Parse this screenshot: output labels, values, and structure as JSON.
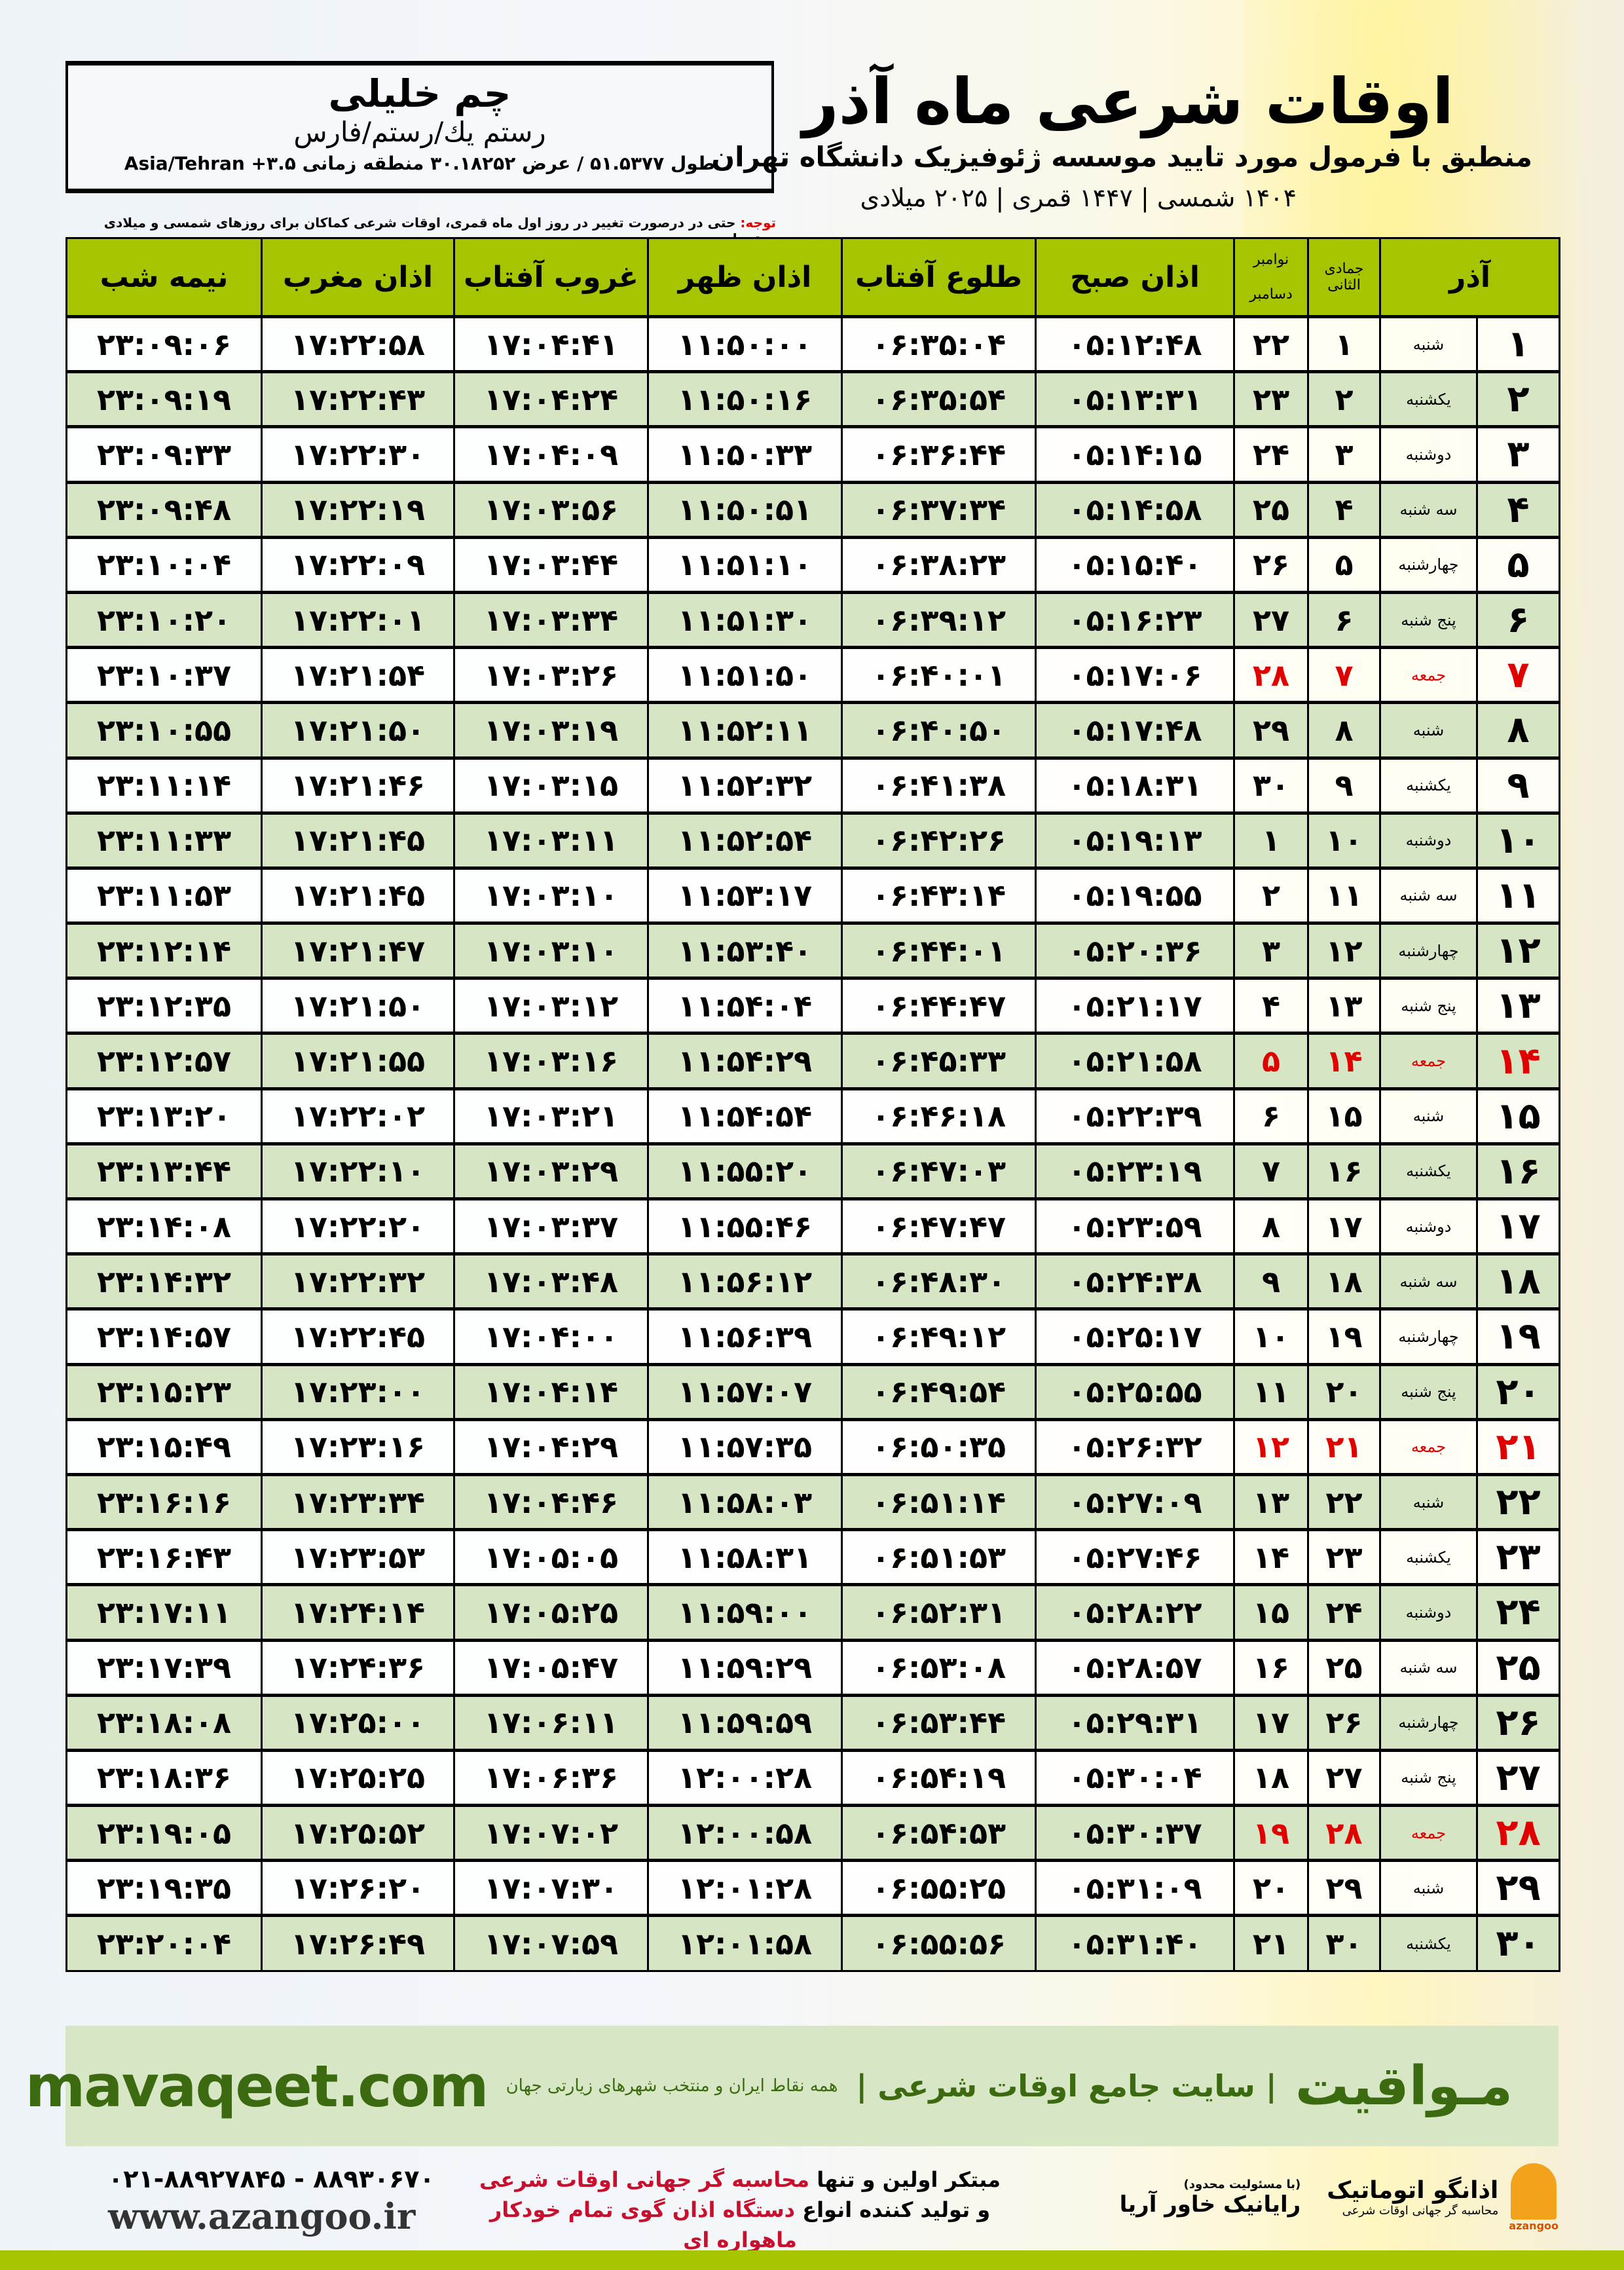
{
  "location": {
    "city": "چم خلیلی",
    "region": "رستم یك/رستم/فارس",
    "coords": "طول ۵۱.۵۳۷۷ / عرض ۳۰.۱۸۲۵۲ منطقه زمانی ۳.۵+ Asia/Tehran"
  },
  "header": {
    "title": "اوقات شرعی ماه آذر",
    "subtitle": "منطبق با فرمول مورد تایید موسسه ژئوفیزیک دانشگاه تهران",
    "dateline": "۱۴۰۴ شمسی | ۱۴۴۷ قمری | ۲۰۲۵ میلادی"
  },
  "note": {
    "label": "توجه:",
    "text": " حتی در درصورت تغییر در روز اول ماه قمری، اوقات شرعی کماکان برای روزهای شمسی و میلادی معتبر است."
  },
  "columns": {
    "azar": "آذر",
    "jumada": "جمادی الثانی",
    "november": "نوامبر",
    "december": "دسامبر",
    "sobh": "اذان صبح",
    "tolu": "طلوع آفتاب",
    "zohr": "اذان ظهر",
    "ghorub": "غروب آفتاب",
    "maghreb": "اذان مغرب",
    "nimeh": "نیمه شب"
  },
  "colors": {
    "header_green": "#a6c400",
    "row_green": "#d6e6c4",
    "friday_red": "#e00000",
    "brand_green": "#3b6a10"
  },
  "rows": [
    [
      "۱",
      "شنبه",
      "۱",
      "۲۲",
      "۰۵:۱۲:۴۸",
      "۰۶:۳۵:۰۴",
      "۱۱:۵۰:۰۰",
      "۱۷:۰۴:۴۱",
      "۱۷:۲۲:۵۸",
      "۲۳:۰۹:۰۶"
    ],
    [
      "۲",
      "یکشنبه",
      "۲",
      "۲۳",
      "۰۵:۱۳:۳۱",
      "۰۶:۳۵:۵۴",
      "۱۱:۵۰:۱۶",
      "۱۷:۰۴:۲۴",
      "۱۷:۲۲:۴۳",
      "۲۳:۰۹:۱۹"
    ],
    [
      "۳",
      "دوشنبه",
      "۳",
      "۲۴",
      "۰۵:۱۴:۱۵",
      "۰۶:۳۶:۴۴",
      "۱۱:۵۰:۳۳",
      "۱۷:۰۴:۰۹",
      "۱۷:۲۲:۳۰",
      "۲۳:۰۹:۳۳"
    ],
    [
      "۴",
      "سه شنبه",
      "۴",
      "۲۵",
      "۰۵:۱۴:۵۸",
      "۰۶:۳۷:۳۴",
      "۱۱:۵۰:۵۱",
      "۱۷:۰۳:۵۶",
      "۱۷:۲۲:۱۹",
      "۲۳:۰۹:۴۸"
    ],
    [
      "۵",
      "چهارشنبه",
      "۵",
      "۲۶",
      "۰۵:۱۵:۴۰",
      "۰۶:۳۸:۲۳",
      "۱۱:۵۱:۱۰",
      "۱۷:۰۳:۴۴",
      "۱۷:۲۲:۰۹",
      "۲۳:۱۰:۰۴"
    ],
    [
      "۶",
      "پنج شنبه",
      "۶",
      "۲۷",
      "۰۵:۱۶:۲۳",
      "۰۶:۳۹:۱۲",
      "۱۱:۵۱:۳۰",
      "۱۷:۰۳:۳۴",
      "۱۷:۲۲:۰۱",
      "۲۳:۱۰:۲۰"
    ],
    [
      "۷",
      "جمعه",
      "۷",
      "۲۸",
      "۰۵:۱۷:۰۶",
      "۰۶:۴۰:۰۱",
      "۱۱:۵۱:۵۰",
      "۱۷:۰۳:۲۶",
      "۱۷:۲۱:۵۴",
      "۲۳:۱۰:۳۷"
    ],
    [
      "۸",
      "شنبه",
      "۸",
      "۲۹",
      "۰۵:۱۷:۴۸",
      "۰۶:۴۰:۵۰",
      "۱۱:۵۲:۱۱",
      "۱۷:۰۳:۱۹",
      "۱۷:۲۱:۵۰",
      "۲۳:۱۰:۵۵"
    ],
    [
      "۹",
      "یکشنبه",
      "۹",
      "۳۰",
      "۰۵:۱۸:۳۱",
      "۰۶:۴۱:۳۸",
      "۱۱:۵۲:۳۲",
      "۱۷:۰۳:۱۵",
      "۱۷:۲۱:۴۶",
      "۲۳:۱۱:۱۴"
    ],
    [
      "۱۰",
      "دوشنبه",
      "۱۰",
      "۱",
      "۰۵:۱۹:۱۳",
      "۰۶:۴۲:۲۶",
      "۱۱:۵۲:۵۴",
      "۱۷:۰۳:۱۱",
      "۱۷:۲۱:۴۵",
      "۲۳:۱۱:۳۳"
    ],
    [
      "۱۱",
      "سه شنبه",
      "۱۱",
      "۲",
      "۰۵:۱۹:۵۵",
      "۰۶:۴۳:۱۴",
      "۱۱:۵۳:۱۷",
      "۱۷:۰۳:۱۰",
      "۱۷:۲۱:۴۵",
      "۲۳:۱۱:۵۳"
    ],
    [
      "۱۲",
      "چهارشنبه",
      "۱۲",
      "۳",
      "۰۵:۲۰:۳۶",
      "۰۶:۴۴:۰۱",
      "۱۱:۵۳:۴۰",
      "۱۷:۰۳:۱۰",
      "۱۷:۲۱:۴۷",
      "۲۳:۱۲:۱۴"
    ],
    [
      "۱۳",
      "پنج شنبه",
      "۱۳",
      "۴",
      "۰۵:۲۱:۱۷",
      "۰۶:۴۴:۴۷",
      "۱۱:۵۴:۰۴",
      "۱۷:۰۳:۱۲",
      "۱۷:۲۱:۵۰",
      "۲۳:۱۲:۳۵"
    ],
    [
      "۱۴",
      "جمعه",
      "۱۴",
      "۵",
      "۰۵:۲۱:۵۸",
      "۰۶:۴۵:۳۳",
      "۱۱:۵۴:۲۹",
      "۱۷:۰۳:۱۶",
      "۱۷:۲۱:۵۵",
      "۲۳:۱۲:۵۷"
    ],
    [
      "۱۵",
      "شنبه",
      "۱۵",
      "۶",
      "۰۵:۲۲:۳۹",
      "۰۶:۴۶:۱۸",
      "۱۱:۵۴:۵۴",
      "۱۷:۰۳:۲۱",
      "۱۷:۲۲:۰۲",
      "۲۳:۱۳:۲۰"
    ],
    [
      "۱۶",
      "یکشنبه",
      "۱۶",
      "۷",
      "۰۵:۲۳:۱۹",
      "۰۶:۴۷:۰۳",
      "۱۱:۵۵:۲۰",
      "۱۷:۰۳:۲۹",
      "۱۷:۲۲:۱۰",
      "۲۳:۱۳:۴۴"
    ],
    [
      "۱۷",
      "دوشنبه",
      "۱۷",
      "۸",
      "۰۵:۲۳:۵۹",
      "۰۶:۴۷:۴۷",
      "۱۱:۵۵:۴۶",
      "۱۷:۰۳:۳۷",
      "۱۷:۲۲:۲۰",
      "۲۳:۱۴:۰۸"
    ],
    [
      "۱۸",
      "سه شنبه",
      "۱۸",
      "۹",
      "۰۵:۲۴:۳۸",
      "۰۶:۴۸:۳۰",
      "۱۱:۵۶:۱۲",
      "۱۷:۰۳:۴۸",
      "۱۷:۲۲:۳۲",
      "۲۳:۱۴:۳۲"
    ],
    [
      "۱۹",
      "چهارشنبه",
      "۱۹",
      "۱۰",
      "۰۵:۲۵:۱۷",
      "۰۶:۴۹:۱۲",
      "۱۱:۵۶:۳۹",
      "۱۷:۰۴:۰۰",
      "۱۷:۲۲:۴۵",
      "۲۳:۱۴:۵۷"
    ],
    [
      "۲۰",
      "پنج شنبه",
      "۲۰",
      "۱۱",
      "۰۵:۲۵:۵۵",
      "۰۶:۴۹:۵۴",
      "۱۱:۵۷:۰۷",
      "۱۷:۰۴:۱۴",
      "۱۷:۲۳:۰۰",
      "۲۳:۱۵:۲۳"
    ],
    [
      "۲۱",
      "جمعه",
      "۲۱",
      "۱۲",
      "۰۵:۲۶:۳۲",
      "۰۶:۵۰:۳۵",
      "۱۱:۵۷:۳۵",
      "۱۷:۰۴:۲۹",
      "۱۷:۲۳:۱۶",
      "۲۳:۱۵:۴۹"
    ],
    [
      "۲۲",
      "شنبه",
      "۲۲",
      "۱۳",
      "۰۵:۲۷:۰۹",
      "۰۶:۵۱:۱۴",
      "۱۱:۵۸:۰۳",
      "۱۷:۰۴:۴۶",
      "۱۷:۲۳:۳۴",
      "۲۳:۱۶:۱۶"
    ],
    [
      "۲۳",
      "یکشنبه",
      "۲۳",
      "۱۴",
      "۰۵:۲۷:۴۶",
      "۰۶:۵۱:۵۳",
      "۱۱:۵۸:۳۱",
      "۱۷:۰۵:۰۵",
      "۱۷:۲۳:۵۳",
      "۲۳:۱۶:۴۳"
    ],
    [
      "۲۴",
      "دوشنبه",
      "۲۴",
      "۱۵",
      "۰۵:۲۸:۲۲",
      "۰۶:۵۲:۳۱",
      "۱۱:۵۹:۰۰",
      "۱۷:۰۵:۲۵",
      "۱۷:۲۴:۱۴",
      "۲۳:۱۷:۱۱"
    ],
    [
      "۲۵",
      "سه شنبه",
      "۲۵",
      "۱۶",
      "۰۵:۲۸:۵۷",
      "۰۶:۵۳:۰۸",
      "۱۱:۵۹:۲۹",
      "۱۷:۰۵:۴۷",
      "۱۷:۲۴:۳۶",
      "۲۳:۱۷:۳۹"
    ],
    [
      "۲۶",
      "چهارشنبه",
      "۲۶",
      "۱۷",
      "۰۵:۲۹:۳۱",
      "۰۶:۵۳:۴۴",
      "۱۱:۵۹:۵۹",
      "۱۷:۰۶:۱۱",
      "۱۷:۲۵:۰۰",
      "۲۳:۱۸:۰۸"
    ],
    [
      "۲۷",
      "پنج شنبه",
      "۲۷",
      "۱۸",
      "۰۵:۳۰:۰۴",
      "۰۶:۵۴:۱۹",
      "۱۲:۰۰:۲۸",
      "۱۷:۰۶:۳۶",
      "۱۷:۲۵:۲۵",
      "۲۳:۱۸:۳۶"
    ],
    [
      "۲۸",
      "جمعه",
      "۲۸",
      "۱۹",
      "۰۵:۳۰:۳۷",
      "۰۶:۵۴:۵۳",
      "۱۲:۰۰:۵۸",
      "۱۷:۰۷:۰۲",
      "۱۷:۲۵:۵۲",
      "۲۳:۱۹:۰۵"
    ],
    [
      "۲۹",
      "شنبه",
      "۲۹",
      "۲۰",
      "۰۵:۳۱:۰۹",
      "۰۶:۵۵:۲۵",
      "۱۲:۰۱:۲۸",
      "۱۷:۰۷:۳۰",
      "۱۷:۲۶:۲۰",
      "۲۳:۱۹:۳۵"
    ],
    [
      "۳۰",
      "یکشنبه",
      "۳۰",
      "۲۱",
      "۰۵:۳۱:۴۰",
      "۰۶:۵۵:۵۶",
      "۱۲:۰۱:۵۸",
      "۱۷:۰۷:۵۹",
      "۱۷:۲۶:۴۹",
      "۲۳:۲۰:۰۴"
    ]
  ],
  "banner": {
    "brand": "مـواقیت",
    "tagline": "| سایت جامع اوقات شرعی |",
    "tagline2": "همه نقاط ایران و منتخب شهرهای زیارتی جهان",
    "site": "mavaqeet.com"
  },
  "footer": {
    "phone": "۰۲۱-۸۸۹۲۷۸۴۵ - ۸۸۹۳۰۶۷۰",
    "web": "www.azangoo.ir",
    "promo1_a": "مبتکر اولین و تنها ",
    "promo1_b": "محاسبه گر جهانی اوقات شرعی",
    "promo2_a": "و تولید کننده انواع ",
    "promo2_b": "دستگاه اذان گوی تمام خودکار ماهواره ای",
    "logo1_small": "(با مسئولیت محدود)",
    "logo1": "رایانیک خاور آریا",
    "logo2": "اذانگو اتوماتیک",
    "logo2_sub": "محاسبه گر جهانی اوقات شرعی",
    "logo2_latin": "azangoo"
  }
}
